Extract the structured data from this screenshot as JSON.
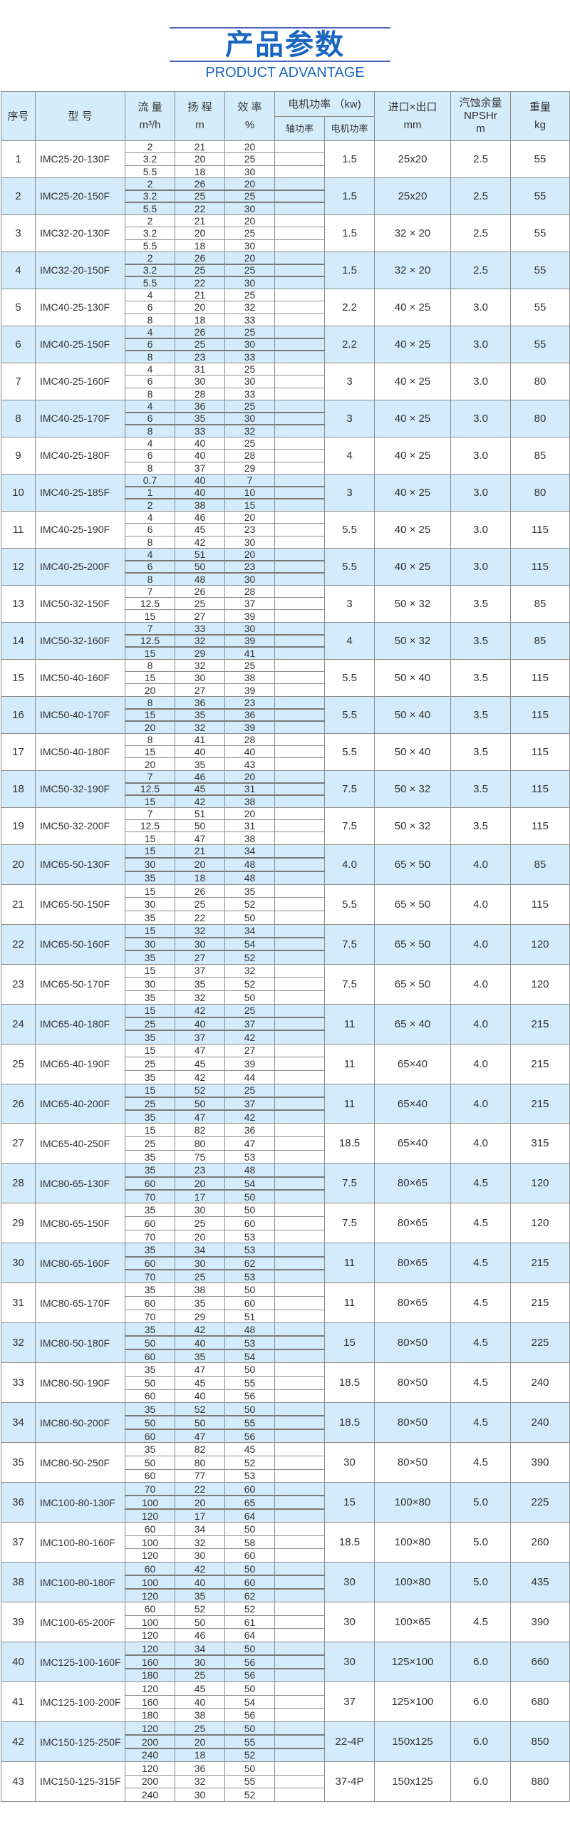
{
  "header": {
    "title": "产品参数",
    "subtitle": "PRODUCT ADVANTAGE"
  },
  "colors": {
    "accent": "#1866c0",
    "row_highlight": "#d3ebfa",
    "header_bg": "#d5edfb"
  },
  "columns": {
    "no": "序号",
    "model": "型 号",
    "flow": "流 量",
    "flow_unit": "m³/h",
    "head": "扬 程",
    "head_unit": "m",
    "eff": "效 率",
    "eff_unit": "%",
    "power": "电机功率 （kw)",
    "shaft_power": "轴功率",
    "motor_power": "电机功率",
    "ports": "进口×出口",
    "ports_unit": "mm",
    "npsh": "汽蚀余量",
    "npsh_sub": "NPSHr",
    "npsh_unit": "m",
    "weight": "重量",
    "weight_unit": "kg"
  },
  "rows": [
    {
      "no": "1",
      "model": "IMC25-20-130F",
      "points": [
        [
          "2",
          "21",
          "20"
        ],
        [
          "3.2",
          "20",
          "25"
        ],
        [
          "5.5",
          "18",
          "30"
        ]
      ],
      "motor": "1.5",
      "ports": "25x20",
      "npsh": "2.5",
      "weight": "55"
    },
    {
      "no": "2",
      "model": "IMC25-20-150F",
      "points": [
        [
          "2",
          "26",
          "20"
        ],
        [
          "3.2",
          "25",
          "25"
        ],
        [
          "5.5",
          "22",
          "30"
        ]
      ],
      "motor": "1.5",
      "ports": "25x20",
      "npsh": "2.5",
      "weight": "55"
    },
    {
      "no": "3",
      "model": "IMC32-20-130F",
      "points": [
        [
          "2",
          "21",
          "20"
        ],
        [
          "3.2",
          "20",
          "25"
        ],
        [
          "5.5",
          "18",
          "30"
        ]
      ],
      "motor": "1.5",
      "ports": "32 × 20",
      "npsh": "2.5",
      "weight": "55"
    },
    {
      "no": "4",
      "model": "IMC32-20-150F",
      "points": [
        [
          "2",
          "26",
          "20"
        ],
        [
          "3.2",
          "25",
          "25"
        ],
        [
          "5.5",
          "22",
          "30"
        ]
      ],
      "motor": "1.5",
      "ports": "32 × 20",
      "npsh": "2.5",
      "weight": "55"
    },
    {
      "no": "5",
      "model": "IMC40-25-130F",
      "points": [
        [
          "4",
          "21",
          "25"
        ],
        [
          "6",
          "20",
          "32"
        ],
        [
          "8",
          "18",
          "33"
        ]
      ],
      "motor": "2.2",
      "ports": "40 × 25",
      "npsh": "3.0",
      "weight": "55"
    },
    {
      "no": "6",
      "model": "IMC40-25-150F",
      "points": [
        [
          "4",
          "26",
          "25"
        ],
        [
          "6",
          "25",
          "30"
        ],
        [
          "8",
          "23",
          "33"
        ]
      ],
      "motor": "2.2",
      "ports": "40 × 25",
      "npsh": "3.0",
      "weight": "55"
    },
    {
      "no": "7",
      "model": "IMC40-25-160F",
      "points": [
        [
          "4",
          "31",
          "25"
        ],
        [
          "6",
          "30",
          "30"
        ],
        [
          "8",
          "28",
          "33"
        ]
      ],
      "motor": "3",
      "ports": "40 × 25",
      "npsh": "3.0",
      "weight": "80"
    },
    {
      "no": "8",
      "model": "IMC40-25-170F",
      "points": [
        [
          "4",
          "36",
          "25"
        ],
        [
          "6",
          "35",
          "30"
        ],
        [
          "8",
          "33",
          "32"
        ]
      ],
      "motor": "3",
      "ports": "40 × 25",
      "npsh": "3.0",
      "weight": "80"
    },
    {
      "no": "9",
      "model": "IMC40-25-180F",
      "points": [
        [
          "4",
          "40",
          "25"
        ],
        [
          "6",
          "40",
          "28"
        ],
        [
          "8",
          "37",
          "29"
        ]
      ],
      "motor": "4",
      "ports": "40 × 25",
      "npsh": "3.0",
      "weight": "85"
    },
    {
      "no": "10",
      "model": "IMC40-25-185F",
      "points": [
        [
          "0.7",
          "40",
          "7"
        ],
        [
          "1",
          "40",
          "10"
        ],
        [
          "2",
          "38",
          "15"
        ]
      ],
      "motor": "3",
      "ports": "40 × 25",
      "npsh": "3.0",
      "weight": "80"
    },
    {
      "no": "11",
      "model": "IMC40-25-190F",
      "points": [
        [
          "4",
          "46",
          "20"
        ],
        [
          "6",
          "45",
          "23"
        ],
        [
          "8",
          "42",
          "30"
        ]
      ],
      "motor": "5.5",
      "ports": "40 × 25",
      "npsh": "3.0",
      "weight": "115"
    },
    {
      "no": "12",
      "model": "IMC40-25-200F",
      "points": [
        [
          "4",
          "51",
          "20"
        ],
        [
          "6",
          "50",
          "23"
        ],
        [
          "8",
          "48",
          "30"
        ]
      ],
      "motor": "5.5",
      "ports": "40 × 25",
      "npsh": "3.0",
      "weight": "115"
    },
    {
      "no": "13",
      "model": "IMC50-32-150F",
      "points": [
        [
          "7",
          "26",
          "28"
        ],
        [
          "12.5",
          "25",
          "37"
        ],
        [
          "15",
          "27",
          "39"
        ]
      ],
      "motor": "3",
      "ports": "50 × 32",
      "npsh": "3.5",
      "weight": "85"
    },
    {
      "no": "14",
      "model": "IMC50-32-160F",
      "points": [
        [
          "7",
          "33",
          "30"
        ],
        [
          "12.5",
          "32",
          "39"
        ],
        [
          "15",
          "29",
          "41"
        ]
      ],
      "motor": "4",
      "ports": "50 × 32",
      "npsh": "3.5",
      "weight": "85"
    },
    {
      "no": "15",
      "model": "IMC50-40-160F",
      "points": [
        [
          "8",
          "32",
          "25"
        ],
        [
          "15",
          "30",
          "38"
        ],
        [
          "20",
          "27",
          "39"
        ]
      ],
      "motor": "5.5",
      "ports": "50 × 40",
      "npsh": "3.5",
      "weight": "115"
    },
    {
      "no": "16",
      "model": "IMC50-40-170F",
      "points": [
        [
          "8",
          "36",
          "23"
        ],
        [
          "15",
          "35",
          "36"
        ],
        [
          "20",
          "32",
          "39"
        ]
      ],
      "motor": "5.5",
      "ports": "50 × 40",
      "npsh": "3.5",
      "weight": "115"
    },
    {
      "no": "17",
      "model": "IMC50-40-180F",
      "points": [
        [
          "8",
          "41",
          "28"
        ],
        [
          "15",
          "40",
          "40"
        ],
        [
          "20",
          "35",
          "43"
        ]
      ],
      "motor": "5.5",
      "ports": "50 × 40",
      "npsh": "3.5",
      "weight": "115"
    },
    {
      "no": "18",
      "model": "IMC50-32-190F",
      "points": [
        [
          "7",
          "46",
          "20"
        ],
        [
          "12.5",
          "45",
          "31"
        ],
        [
          "15",
          "42",
          "38"
        ]
      ],
      "motor": "7.5",
      "ports": "50 × 32",
      "npsh": "3.5",
      "weight": "115"
    },
    {
      "no": "19",
      "model": "IMC50-32-200F",
      "points": [
        [
          "7",
          "51",
          "20"
        ],
        [
          "12.5",
          "50",
          "31"
        ],
        [
          "15",
          "47",
          "38"
        ]
      ],
      "motor": "7.5",
      "ports": "50 × 32",
      "npsh": "3.5",
      "weight": "115"
    },
    {
      "no": "20",
      "model": "IMC65-50-130F",
      "points": [
        [
          "15",
          "21",
          "34"
        ],
        [
          "30",
          "20",
          "48"
        ],
        [
          "35",
          "18",
          "48"
        ]
      ],
      "motor": "4.0",
      "ports": "65 × 50",
      "npsh": "4.0",
      "weight": "85"
    },
    {
      "no": "21",
      "model": "IMC65-50-150F",
      "points": [
        [
          "15",
          "26",
          "35"
        ],
        [
          "30",
          "25",
          "52"
        ],
        [
          "35",
          "22",
          "50"
        ]
      ],
      "motor": "5.5",
      "ports": "65 × 50",
      "npsh": "4.0",
      "weight": "115"
    },
    {
      "no": "22",
      "model": "IMC65-50-160F",
      "points": [
        [
          "15",
          "32",
          "34"
        ],
        [
          "30",
          "30",
          "54"
        ],
        [
          "35",
          "27",
          "52"
        ]
      ],
      "motor": "7.5",
      "ports": "65 × 50",
      "npsh": "4.0",
      "weight": "120"
    },
    {
      "no": "23",
      "model": "IMC65-50-170F",
      "points": [
        [
          "15",
          "37",
          "32"
        ],
        [
          "30",
          "35",
          "52"
        ],
        [
          "35",
          "32",
          "50"
        ]
      ],
      "motor": "7.5",
      "ports": "65 × 50",
      "npsh": "4.0",
      "weight": "120"
    },
    {
      "no": "24",
      "model": "IMC65-40-180F",
      "points": [
        [
          "15",
          "42",
          "25"
        ],
        [
          "25",
          "40",
          "37"
        ],
        [
          "35",
          "37",
          "42"
        ]
      ],
      "motor": "11",
      "ports": "65 × 40",
      "npsh": "4.0",
      "weight": "215"
    },
    {
      "no": "25",
      "model": "IMC65-40-190F",
      "points": [
        [
          "15",
          "47",
          "27"
        ],
        [
          "25",
          "45",
          "39"
        ],
        [
          "35",
          "42",
          "44"
        ]
      ],
      "motor": "11",
      "ports": "65×40",
      "npsh": "4.0",
      "weight": "215"
    },
    {
      "no": "26",
      "model": "IMC65-40-200F",
      "points": [
        [
          "15",
          "52",
          "25"
        ],
        [
          "25",
          "50",
          "37"
        ],
        [
          "35",
          "47",
          "42"
        ]
      ],
      "motor": "11",
      "ports": "65×40",
      "npsh": "4.0",
      "weight": "215"
    },
    {
      "no": "27",
      "model": "IMC65-40-250F",
      "points": [
        [
          "15",
          "82",
          "36"
        ],
        [
          "25",
          "80",
          "47"
        ],
        [
          "35",
          "75",
          "53"
        ]
      ],
      "motor": "18.5",
      "ports": "65×40",
      "npsh": "4.0",
      "weight": "315"
    },
    {
      "no": "28",
      "model": "IMC80-65-130F",
      "points": [
        [
          "35",
          "23",
          "48"
        ],
        [
          "60",
          "20",
          "54"
        ],
        [
          "70",
          "17",
          "50"
        ]
      ],
      "motor": "7.5",
      "ports": "80×65",
      "npsh": "4.5",
      "weight": "120"
    },
    {
      "no": "29",
      "model": "IMC80-65-150F",
      "points": [
        [
          "35",
          "30",
          "50"
        ],
        [
          "60",
          "25",
          "60"
        ],
        [
          "70",
          "20",
          "53"
        ]
      ],
      "motor": "7.5",
      "ports": "80×65",
      "npsh": "4.5",
      "weight": "120"
    },
    {
      "no": "30",
      "model": "IMC80-65-160F",
      "points": [
        [
          "35",
          "34",
          "53"
        ],
        [
          "60",
          "30",
          "62"
        ],
        [
          "70",
          "25",
          "53"
        ]
      ],
      "motor": "11",
      "ports": "80×65",
      "npsh": "4.5",
      "weight": "215"
    },
    {
      "no": "31",
      "model": "IMC80-65-170F",
      "points": [
        [
          "35",
          "38",
          "50"
        ],
        [
          "60",
          "35",
          "60"
        ],
        [
          "70",
          "29",
          "51"
        ]
      ],
      "motor": "11",
      "ports": "80×65",
      "npsh": "4.5",
      "weight": "215"
    },
    {
      "no": "32",
      "model": "IMC80-50-180F",
      "points": [
        [
          "35",
          "42",
          "48"
        ],
        [
          "50",
          "40",
          "53"
        ],
        [
          "60",
          "35",
          "54"
        ]
      ],
      "motor": "15",
      "ports": "80×50",
      "npsh": "4.5",
      "weight": "225"
    },
    {
      "no": "33",
      "model": "IMC80-50-190F",
      "points": [
        [
          "35",
          "47",
          "50"
        ],
        [
          "50",
          "45",
          "55"
        ],
        [
          "60",
          "40",
          "56"
        ]
      ],
      "motor": "18.5",
      "ports": "80×50",
      "npsh": "4.5",
      "weight": "240"
    },
    {
      "no": "34",
      "model": "IMC80-50-200F",
      "points": [
        [
          "35",
          "52",
          "50"
        ],
        [
          "50",
          "50",
          "55"
        ],
        [
          "60",
          "47",
          "56"
        ]
      ],
      "motor": "18.5",
      "ports": "80×50",
      "npsh": "4.5",
      "weight": "240"
    },
    {
      "no": "35",
      "model": "IMC80-50-250F",
      "points": [
        [
          "35",
          "82",
          "45"
        ],
        [
          "50",
          "80",
          "52"
        ],
        [
          "60",
          "77",
          "53"
        ]
      ],
      "motor": "30",
      "ports": "80×50",
      "npsh": "4.5",
      "weight": "390"
    },
    {
      "no": "36",
      "model": "IMC100-80-130F",
      "points": [
        [
          "70",
          "22",
          "60"
        ],
        [
          "100",
          "20",
          "65"
        ],
        [
          "120",
          "17",
          "64"
        ]
      ],
      "motor": "15",
      "ports": "100×80",
      "npsh": "5.0",
      "weight": "225"
    },
    {
      "no": "37",
      "model": "IMC100-80-160F",
      "points": [
        [
          "60",
          "34",
          "50"
        ],
        [
          "100",
          "32",
          "58"
        ],
        [
          "120",
          "30",
          "60"
        ]
      ],
      "motor": "18.5",
      "ports": "100×80",
      "npsh": "5.0",
      "weight": "260"
    },
    {
      "no": "38",
      "model": "IMC100-80-180F",
      "points": [
        [
          "60",
          "42",
          "50"
        ],
        [
          "100",
          "40",
          "60"
        ],
        [
          "120",
          "35",
          "62"
        ]
      ],
      "motor": "30",
      "ports": "100×80",
      "npsh": "5.0",
      "weight": "435"
    },
    {
      "no": "39",
      "model": "IMC100-65-200F",
      "points": [
        [
          "60",
          "52",
          "52"
        ],
        [
          "100",
          "50",
          "61"
        ],
        [
          "120",
          "46",
          "64"
        ]
      ],
      "motor": "30",
      "ports": "100×65",
      "npsh": "4.5",
      "weight": "390"
    },
    {
      "no": "40",
      "model": "IMC125-100-160F",
      "points": [
        [
          "120",
          "34",
          "50"
        ],
        [
          "160",
          "30",
          "56"
        ],
        [
          "180",
          "25",
          "56"
        ]
      ],
      "motor": "30",
      "ports": "125×100",
      "npsh": "6.0",
      "weight": "660"
    },
    {
      "no": "41",
      "model": "IMC125-100-200F",
      "points": [
        [
          "120",
          "45",
          "50"
        ],
        [
          "160",
          "40",
          "54"
        ],
        [
          "180",
          "38",
          "56"
        ]
      ],
      "motor": "37",
      "ports": "125×100",
      "npsh": "6.0",
      "weight": "680"
    },
    {
      "no": "42",
      "model": "IMC150-125-250F",
      "points": [
        [
          "120",
          "25",
          "50"
        ],
        [
          "200",
          "20",
          "55"
        ],
        [
          "240",
          "18",
          "52"
        ]
      ],
      "motor": "22-4P",
      "ports": "150x125",
      "npsh": "6.0",
      "weight": "850"
    },
    {
      "no": "43",
      "model": "IMC150-125-315F",
      "points": [
        [
          "120",
          "36",
          "50"
        ],
        [
          "200",
          "32",
          "55"
        ],
        [
          "240",
          "30",
          "52"
        ]
      ],
      "motor": "37-4P",
      "ports": "150x125",
      "npsh": "6.0",
      "weight": "880"
    }
  ]
}
